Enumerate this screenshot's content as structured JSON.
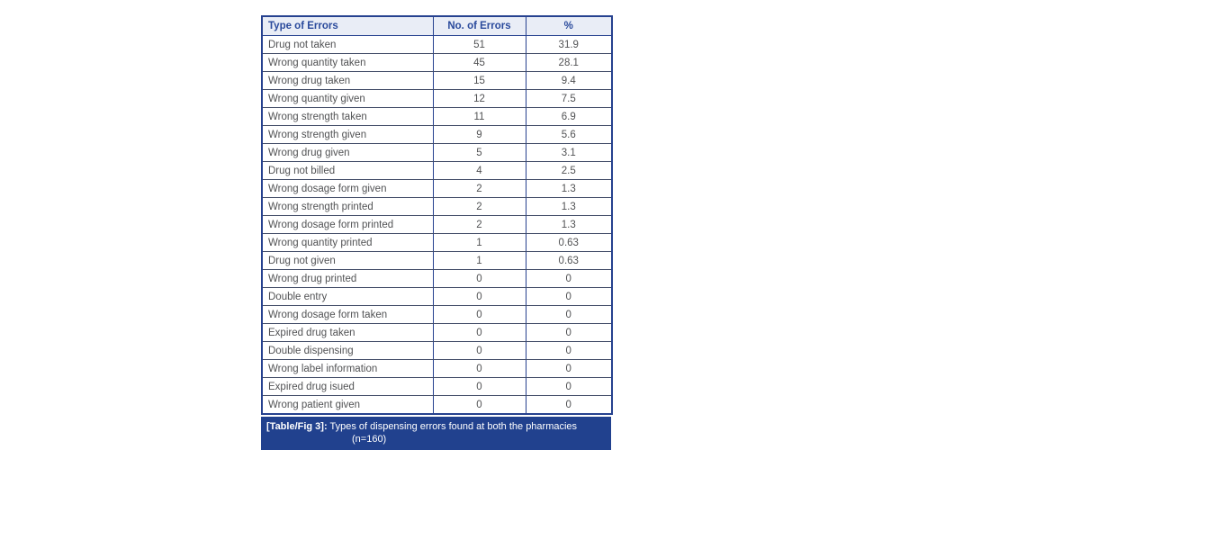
{
  "table": {
    "columns": [
      "Type of Errors",
      "No. of Errors",
      "%"
    ],
    "rows": [
      {
        "type": "Drug not taken",
        "count": "51",
        "pct": "31.9"
      },
      {
        "type": "Wrong quantity taken",
        "count": "45",
        "pct": "28.1"
      },
      {
        "type": "Wrong drug taken",
        "count": "15",
        "pct": "9.4"
      },
      {
        "type": "Wrong quantity given",
        "count": "12",
        "pct": "7.5"
      },
      {
        "type": "Wrong strength taken",
        "count": "11",
        "pct": "6.9"
      },
      {
        "type": "Wrong strength given",
        "count": "9",
        "pct": "5.6"
      },
      {
        "type": "Wrong drug given",
        "count": "5",
        "pct": "3.1"
      },
      {
        "type": "Drug not billed",
        "count": "4",
        "pct": "2.5"
      },
      {
        "type": "Wrong dosage form given",
        "count": "2",
        "pct": "1.3"
      },
      {
        "type": "Wrong strength printed",
        "count": "2",
        "pct": "1.3"
      },
      {
        "type": "Wrong dosage form printed",
        "count": "2",
        "pct": "1.3"
      },
      {
        "type": "Wrong quantity printed",
        "count": "1",
        "pct": "0.63"
      },
      {
        "type": "Drug not given",
        "count": "1",
        "pct": "0.63"
      },
      {
        "type": "Wrong drug printed",
        "count": "0",
        "pct": "0"
      },
      {
        "type": "Double entry",
        "count": "0",
        "pct": "0"
      },
      {
        "type": "Wrong dosage form taken",
        "count": "0",
        "pct": "0"
      },
      {
        "type": "Expired drug taken",
        "count": "0",
        "pct": "0"
      },
      {
        "type": "Double dispensing",
        "count": "0",
        "pct": "0"
      },
      {
        "type": "Wrong label information",
        "count": "0",
        "pct": "0"
      },
      {
        "type": "Expired drug isued",
        "count": "0",
        "pct": "0"
      },
      {
        "type": "Wrong patient given",
        "count": "0",
        "pct": "0"
      }
    ],
    "caption": {
      "label": "[Table/Fig 3]:",
      "text": "Types of dispensing errors found at both the pharmacies",
      "subtext": "(n=160)"
    },
    "colors": {
      "header_bg": "#e9edf6",
      "header_text": "#2a4a9c",
      "border_outer": "#26418f",
      "border_inner": "#3f4a66",
      "body_text": "#515254",
      "caption_bg": "#21418e",
      "caption_text": "#ffffff"
    }
  }
}
